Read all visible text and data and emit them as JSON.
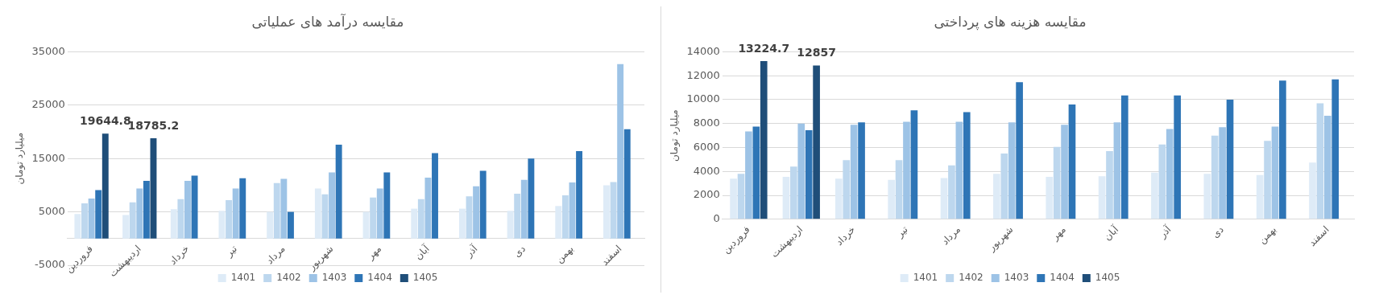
{
  "chart_data": [
    {
      "type": "bar",
      "title": "مقایسه درآمد های عملیاتی",
      "ylabel": "میلیارد تومان",
      "categories": [
        "فروردین",
        "اردیبهشت",
        "خرداد",
        "تیر",
        "مرداد",
        "شهریور",
        "مهر",
        "آبان",
        "آذر",
        "دی",
        "بهمن",
        "اسفند"
      ],
      "series": [
        {
          "name": "1401",
          "color": "#deebf7",
          "values": [
            4600,
            4400,
            5500,
            5200,
            5000,
            9400,
            5000,
            5600,
            5600,
            5200,
            6100,
            10000
          ]
        },
        {
          "name": "1402",
          "color": "#bdd7ee",
          "values": [
            6600,
            6800,
            7400,
            7200,
            10400,
            8300,
            7700,
            7400,
            7900,
            8400,
            8100,
            10600
          ]
        },
        {
          "name": "1403",
          "color": "#9dc3e6",
          "values": [
            7500,
            9400,
            10800,
            9400,
            11200,
            12400,
            9400,
            11400,
            9800,
            11000,
            10500,
            32700
          ]
        },
        {
          "name": "1404",
          "color": "#2e75b6",
          "values": [
            9100,
            10800,
            11800,
            11300,
            5000,
            17600,
            12400,
            16000,
            12700,
            15000,
            16400,
            20500
          ]
        },
        {
          "name": "1405",
          "color": "#1f4e79",
          "values": [
            19644.8,
            18785.2,
            null,
            null,
            null,
            null,
            null,
            null,
            null,
            null,
            null,
            null
          ],
          "value_labels": [
            "19644.8",
            "18785.2",
            null,
            null,
            null,
            null,
            null,
            null,
            null,
            null,
            null,
            null
          ]
        }
      ],
      "ylim": [
        -5000,
        35000
      ],
      "yticks": [
        -5000,
        5000,
        15000,
        25000,
        35000
      ],
      "grid": "y",
      "legend": "bottom"
    },
    {
      "type": "bar",
      "title": "مقایسه هزینه های پرداختی",
      "ylabel": "میلیارد تومان",
      "categories": [
        "فروردین",
        "اردیبهشت",
        "خرداد",
        "تیر",
        "مرداد",
        "شهریور",
        "مهر",
        "آبان",
        "آذر",
        "دی",
        "بهمن",
        "اسفند"
      ],
      "series": [
        {
          "name": "1401",
          "color": "#deebf7",
          "values": [
            3400,
            3550,
            3400,
            3300,
            3450,
            3800,
            3550,
            3600,
            3900,
            3800,
            3700,
            4750
          ]
        },
        {
          "name": "1402",
          "color": "#bdd7ee",
          "values": [
            3800,
            4400,
            4950,
            4950,
            4500,
            5500,
            6050,
            5700,
            6250,
            7000,
            6550,
            9700
          ]
        },
        {
          "name": "1403",
          "color": "#9dc3e6",
          "values": [
            7350,
            8000,
            7900,
            8150,
            8150,
            8100,
            7900,
            8100,
            7550,
            7700,
            7750,
            8650
          ]
        },
        {
          "name": "1404",
          "color": "#2e75b6",
          "values": [
            7750,
            7450,
            8100,
            9100,
            8950,
            11450,
            9600,
            10350,
            10350,
            10000,
            11600,
            11700
          ]
        },
        {
          "name": "1405",
          "color": "#1f4e79",
          "values": [
            13224.7,
            12857,
            null,
            null,
            null,
            null,
            null,
            null,
            null,
            null,
            null,
            null
          ],
          "value_labels": [
            "13224.7",
            "12857",
            null,
            null,
            null,
            null,
            null,
            null,
            null,
            null,
            null,
            null
          ]
        }
      ],
      "ylim": [
        0,
        14000
      ],
      "yticks": [
        0,
        2000,
        4000,
        6000,
        8000,
        10000,
        12000,
        14000
      ],
      "grid": "y",
      "legend": "bottom"
    }
  ]
}
